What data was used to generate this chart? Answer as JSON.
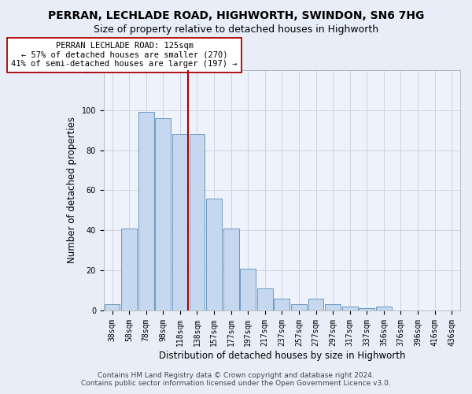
{
  "title": "PERRAN, LECHLADE ROAD, HIGHWORTH, SWINDON, SN6 7HG",
  "subtitle": "Size of property relative to detached houses in Highworth",
  "xlabel": "Distribution of detached houses by size in Highworth",
  "ylabel": "Number of detached properties",
  "categories": [
    "38sqm",
    "58sqm",
    "78sqm",
    "98sqm",
    "118sqm",
    "138sqm",
    "157sqm",
    "177sqm",
    "197sqm",
    "217sqm",
    "237sqm",
    "257sqm",
    "277sqm",
    "297sqm",
    "317sqm",
    "337sqm",
    "356sqm",
    "376sqm",
    "396sqm",
    "416sqm",
    "436sqm"
  ],
  "values": [
    3,
    41,
    99,
    96,
    88,
    88,
    56,
    41,
    21,
    11,
    6,
    3,
    6,
    3,
    2,
    1,
    2,
    0,
    0,
    0,
    0
  ],
  "bar_color": "#c5d8f0",
  "bar_edge_color": "#5b8db8",
  "highlight_line_index": 4,
  "highlight_color": "#aa0000",
  "annotation_text": "PERRAN LECHLADE ROAD: 125sqm\n← 57% of detached houses are smaller (270)\n41% of semi-detached houses are larger (197) →",
  "annotation_box_color": "#ffffff",
  "annotation_box_edge_color": "#aa0000",
  "ylim": [
    0,
    120
  ],
  "yticks": [
    0,
    20,
    40,
    60,
    80,
    100,
    120
  ],
  "footer_line1": "Contains HM Land Registry data © Crown copyright and database right 2024.",
  "footer_line2": "Contains public sector information licensed under the Open Government Licence v3.0.",
  "title_fontsize": 10,
  "subtitle_fontsize": 9,
  "axis_label_fontsize": 8.5,
  "tick_fontsize": 7,
  "annotation_fontsize": 7.5,
  "footer_fontsize": 6.5,
  "background_color": "#e8eef8",
  "plot_background_color": "#eef2fa"
}
